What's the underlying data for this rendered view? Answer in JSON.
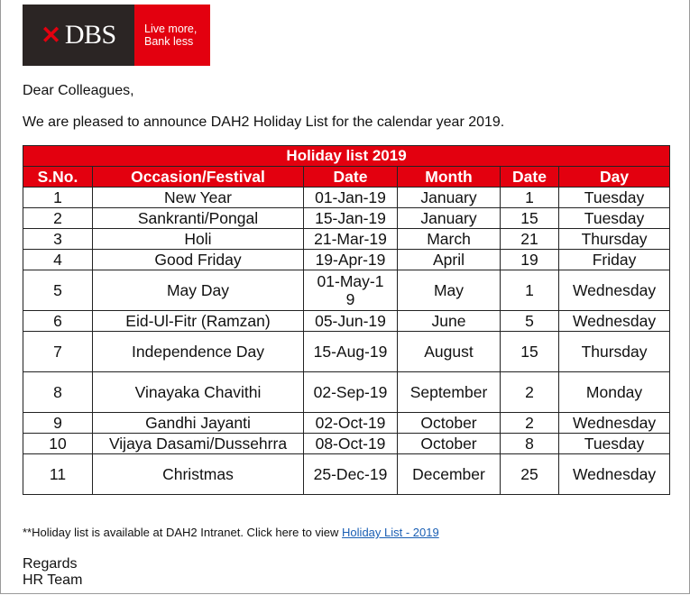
{
  "logo": {
    "brand": "DBS",
    "tagline_line1": "Live more,",
    "tagline_line2": "Bank less"
  },
  "greeting": "Dear Colleagues,",
  "intro": "We are pleased to announce DAH2 Holiday List for the calendar year 2019.",
  "table": {
    "title": "Holiday list 2019",
    "headers": [
      "S.No.",
      "Occasion/Festival",
      "Date",
      "Month",
      "Date",
      "Day"
    ],
    "rows": [
      {
        "sno": "1",
        "occasion": "New Year",
        "date": "01-Jan-19",
        "month": "January",
        "day_num": "1",
        "weekday": "Tuesday",
        "tall": false
      },
      {
        "sno": "2",
        "occasion": "Sankranti/Pongal",
        "date": "15-Jan-19",
        "month": "January",
        "day_num": "15",
        "weekday": "Tuesday",
        "tall": false
      },
      {
        "sno": "3",
        "occasion": "Holi",
        "date": "21-Mar-19",
        "month": "March",
        "day_num": "21",
        "weekday": "Thursday",
        "tall": false
      },
      {
        "sno": "4",
        "occasion": "Good Friday",
        "date": "19-Apr-19",
        "month": "April",
        "day_num": "19",
        "weekday": "Friday",
        "tall": false
      },
      {
        "sno": "5",
        "occasion": "May Day",
        "date": "01-May-19",
        "month": "May",
        "day_num": "1",
        "weekday": "Wednesday",
        "tall": true
      },
      {
        "sno": "6",
        "occasion": "Eid-Ul-Fitr (Ramzan)",
        "date": "05-Jun-19",
        "month": "June",
        "day_num": "5",
        "weekday": "Wednesday",
        "tall": false
      },
      {
        "sno": "7",
        "occasion": "Independence Day",
        "date": "15-Aug-19",
        "month": "August",
        "day_num": "15",
        "weekday": "Thursday",
        "tall": true
      },
      {
        "sno": "8",
        "occasion": "Vinayaka Chavithi",
        "date": "02-Sep-19",
        "month": "September",
        "day_num": "2",
        "weekday": "Monday",
        "tall": true
      },
      {
        "sno": "9",
        "occasion": "Gandhi Jayanti",
        "date": "02-Oct-19",
        "month": "October",
        "day_num": "2",
        "weekday": "Wednesday",
        "tall": false
      },
      {
        "sno": "10",
        "occasion": "Vijaya Dasami/Dussehrra",
        "date": "08-Oct-19",
        "month": "October",
        "day_num": "8",
        "weekday": "Tuesday",
        "tall": false
      },
      {
        "sno": "11",
        "occasion": "Christmas",
        "date": "25-Dec-19",
        "month": "December",
        "day_num": "25",
        "weekday": "Wednesday",
        "tall": true
      }
    ]
  },
  "footnote": {
    "text": "**Holiday list is available at DAH2 Intranet. Click here to view ",
    "link": "Holiday List - 2019"
  },
  "signature": {
    "regards": "Regards",
    "team": "HR Team"
  },
  "colors": {
    "brand_red": "#e3000f",
    "logo_dark": "#2b2524",
    "link": "#1a5fb4"
  }
}
